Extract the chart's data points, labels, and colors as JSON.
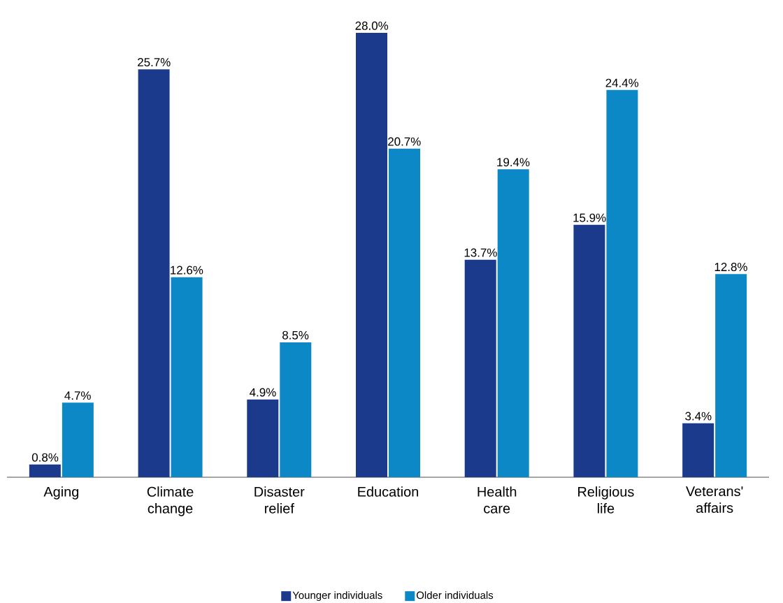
{
  "chart_data": {
    "type": "bar",
    "categories": [
      "Aging",
      "Climate change",
      "Disaster relief",
      "Education",
      "Health care",
      "Religious life",
      "Veterans' affairs"
    ],
    "series": [
      {
        "name": "Younger individuals",
        "color": "#1b3a8c",
        "values": [
          0.8,
          25.7,
          4.9,
          28.0,
          13.7,
          15.9,
          3.4
        ],
        "value_labels": [
          "0.8%",
          "25.7%",
          "4.9%",
          "28.0%",
          "13.7%",
          "15.9%",
          "3.4%"
        ]
      },
      {
        "name": "Older individuals",
        "color": "#0c88c6",
        "values": [
          4.7,
          12.6,
          8.5,
          20.7,
          19.4,
          24.4,
          12.8
        ],
        "value_labels": [
          "4.7%",
          "12.6%",
          "8.5%",
          "20.7%",
          "19.4%",
          "24.4%",
          "12.8%"
        ]
      }
    ],
    "ylim": [
      0,
      28
    ],
    "legend": "bottom"
  }
}
